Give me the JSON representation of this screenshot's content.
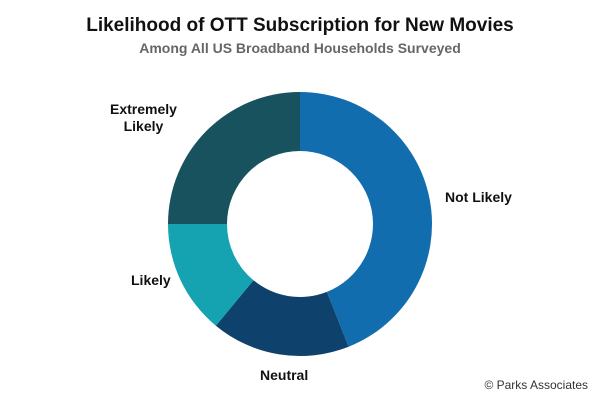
{
  "chart_data": {
    "type": "pie",
    "donut": true,
    "title": "Likelihood of OTT Subscription for New Movies",
    "subtitle": "Among All US Broadband Households Surveyed",
    "slices": [
      {
        "label": "Not Likely",
        "value": 44,
        "color": "#126DAE"
      },
      {
        "label": "Neutral",
        "value": 17,
        "color": "#0E426D"
      },
      {
        "label": "Likely",
        "value": 14,
        "color": "#15A3B1"
      },
      {
        "label": "Extremely Likely",
        "value": 25,
        "color": "#17525E"
      }
    ],
    "label_lines": {
      "extremely_likely": [
        "Extremely",
        "Likely"
      ]
    },
    "credit": "© Parks Associates"
  }
}
